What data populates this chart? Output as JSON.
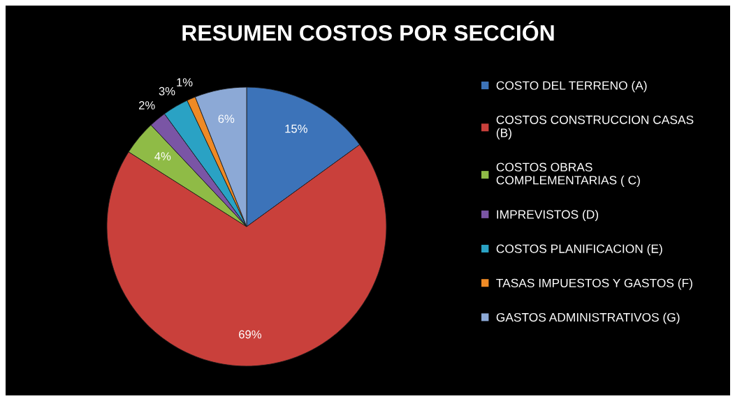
{
  "chart_data": {
    "type": "pie",
    "title": "RESUMEN COSTOS POR SECCIÓN",
    "categories": [
      "COSTO DEL TERRENO (A)",
      "COSTOS CONSTRUCCION CASAS (B)",
      "COSTOS OBRAS COMPLEMENTARIAS ( C)",
      "IMPREVISTOS (D)",
      "COSTOS PLANIFICACION (E)",
      "TASAS IMPUESTOS Y GASTOS (F)",
      "GASTOS ADMINISTRATIVOS (G)"
    ],
    "values": [
      15,
      69,
      4,
      2,
      3,
      1,
      6
    ],
    "value_labels": [
      "15%",
      "69%",
      "4%",
      "2%",
      "3%",
      "1%",
      "6%"
    ],
    "colors": [
      "#3c73b9",
      "#c9403b",
      "#8fbb46",
      "#7a55a5",
      "#2aa2c4",
      "#ef8a25",
      "#8ca9d6"
    ],
    "legend": "right"
  }
}
